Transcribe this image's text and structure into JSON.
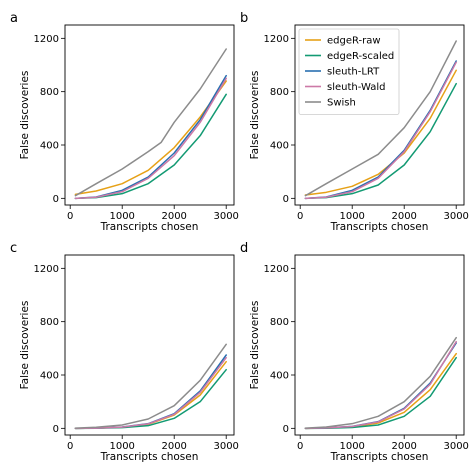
{
  "chart_data": [
    {
      "type": "line",
      "panel_label": "a",
      "xlabel": "Transcripts chosen",
      "ylabel": "False discoveries",
      "xlim": [
        -100,
        3150
      ],
      "ylim": [
        -50,
        1300
      ],
      "xticks": [
        0,
        1000,
        2000,
        3000
      ],
      "yticks": [
        0,
        400,
        800,
        1200
      ],
      "show_legend": false,
      "series": [
        {
          "name": "edgeR-raw",
          "color": "#E6A117",
          "x": [
            100,
            500,
            1000,
            1500,
            2000,
            2500,
            3000
          ],
          "y": [
            30,
            55,
            110,
            210,
            380,
            610,
            880
          ]
        },
        {
          "name": "edgeR-scaled",
          "color": "#139A73",
          "x": [
            100,
            500,
            1000,
            1500,
            2000,
            2500,
            3000
          ],
          "y": [
            0,
            5,
            35,
            110,
            250,
            470,
            780
          ]
        },
        {
          "name": "sleuth-LRT",
          "color": "#2A6FB0",
          "x": [
            100,
            500,
            1000,
            1500,
            2000,
            2500,
            3000
          ],
          "y": [
            0,
            10,
            60,
            160,
            340,
            590,
            920
          ]
        },
        {
          "name": "sleuth-Wald",
          "color": "#CC79A7",
          "x": [
            100,
            500,
            1000,
            1500,
            2000,
            2500,
            3000
          ],
          "y": [
            0,
            8,
            50,
            150,
            320,
            570,
            900
          ]
        },
        {
          "name": "Swish",
          "color": "#8C8C8C",
          "x": [
            100,
            500,
            1000,
            1500,
            1750,
            2000,
            2500,
            3000
          ],
          "y": [
            20,
            110,
            220,
            350,
            420,
            570,
            820,
            1120
          ]
        }
      ]
    },
    {
      "type": "line",
      "panel_label": "b",
      "xlabel": "Transcripts chosen",
      "ylabel": "False discoveries",
      "xlim": [
        -100,
        3150
      ],
      "ylim": [
        -50,
        1300
      ],
      "xticks": [
        0,
        1000,
        2000,
        3000
      ],
      "yticks": [
        0,
        400,
        800,
        1200
      ],
      "show_legend": true,
      "legend": "top-left",
      "series": [
        {
          "name": "edgeR-raw",
          "color": "#E6A117",
          "x": [
            100,
            500,
            1000,
            1500,
            2000,
            2500,
            3000
          ],
          "y": [
            25,
            45,
            90,
            180,
            340,
            600,
            960
          ]
        },
        {
          "name": "edgeR-scaled",
          "color": "#139A73",
          "x": [
            100,
            500,
            1000,
            1500,
            2000,
            2500,
            3000
          ],
          "y": [
            0,
            5,
            35,
            100,
            250,
            500,
            860
          ]
        },
        {
          "name": "sleuth-LRT",
          "color": "#2A6FB0",
          "x": [
            100,
            500,
            1000,
            1500,
            2000,
            2500,
            3000
          ],
          "y": [
            0,
            10,
            60,
            160,
            360,
            660,
            1030
          ]
        },
        {
          "name": "sleuth-Wald",
          "color": "#CC79A7",
          "x": [
            100,
            500,
            1000,
            1500,
            2000,
            2500,
            3000
          ],
          "y": [
            0,
            8,
            50,
            150,
            350,
            650,
            1020
          ]
        },
        {
          "name": "Swish",
          "color": "#8C8C8C",
          "x": [
            100,
            500,
            1000,
            1500,
            2000,
            2500,
            3000
          ],
          "y": [
            20,
            110,
            220,
            330,
            530,
            800,
            1180
          ]
        }
      ]
    },
    {
      "type": "line",
      "panel_label": "c",
      "xlabel": "Transcripts chosen",
      "ylabel": "False discoveries",
      "xlim": [
        -100,
        3150
      ],
      "ylim": [
        -50,
        1300
      ],
      "xticks": [
        0,
        1000,
        2000,
        3000
      ],
      "yticks": [
        0,
        400,
        800,
        1200
      ],
      "show_legend": false,
      "series": [
        {
          "name": "edgeR-raw",
          "color": "#E6A117",
          "x": [
            100,
            500,
            1000,
            1500,
            2000,
            2500,
            3000
          ],
          "y": [
            0,
            2,
            8,
            30,
            100,
            250,
            500
          ]
        },
        {
          "name": "edgeR-scaled",
          "color": "#139A73",
          "x": [
            100,
            500,
            1000,
            1500,
            2000,
            2500,
            3000
          ],
          "y": [
            0,
            1,
            5,
            20,
            75,
            200,
            440
          ]
        },
        {
          "name": "sleuth-LRT",
          "color": "#2A6FB0",
          "x": [
            100,
            500,
            1000,
            1500,
            2000,
            2500,
            3000
          ],
          "y": [
            0,
            2,
            10,
            35,
            110,
            280,
            550
          ]
        },
        {
          "name": "sleuth-Wald",
          "color": "#CC79A7",
          "x": [
            100,
            500,
            1000,
            1500,
            2000,
            2500,
            3000
          ],
          "y": [
            0,
            2,
            9,
            33,
            105,
            270,
            530
          ]
        },
        {
          "name": "Swish",
          "color": "#8C8C8C",
          "x": [
            100,
            500,
            1000,
            1500,
            2000,
            2500,
            3000
          ],
          "y": [
            2,
            8,
            25,
            70,
            170,
            360,
            630
          ]
        }
      ]
    },
    {
      "type": "line",
      "panel_label": "d",
      "xlabel": "Transcripts chosen",
      "ylabel": "False discoveries",
      "xlim": [
        -100,
        3150
      ],
      "ylim": [
        -50,
        1300
      ],
      "xticks": [
        0,
        1000,
        2000,
        3000
      ],
      "yticks": [
        0,
        400,
        800,
        1200
      ],
      "show_legend": false,
      "series": [
        {
          "name": "edgeR-raw",
          "color": "#E6A117",
          "x": [
            100,
            500,
            1000,
            1500,
            2000,
            2500,
            3000
          ],
          "y": [
            0,
            2,
            10,
            40,
            120,
            290,
            560
          ]
        },
        {
          "name": "edgeR-scaled",
          "color": "#139A73",
          "x": [
            100,
            500,
            1000,
            1500,
            2000,
            2500,
            3000
          ],
          "y": [
            0,
            1,
            6,
            25,
            90,
            240,
            530
          ]
        },
        {
          "name": "sleuth-LRT",
          "color": "#2A6FB0",
          "x": [
            100,
            500,
            1000,
            1500,
            2000,
            2500,
            3000
          ],
          "y": [
            0,
            3,
            15,
            50,
            150,
            340,
            640
          ]
        },
        {
          "name": "sleuth-Wald",
          "color": "#CC79A7",
          "x": [
            100,
            500,
            1000,
            1500,
            2000,
            2500,
            3000
          ],
          "y": [
            0,
            3,
            14,
            48,
            145,
            330,
            650
          ]
        },
        {
          "name": "Swish",
          "color": "#8C8C8C",
          "x": [
            100,
            500,
            1000,
            1500,
            2000,
            2500,
            3000
          ],
          "y": [
            2,
            10,
            35,
            90,
            200,
            390,
            680
          ]
        }
      ]
    }
  ]
}
